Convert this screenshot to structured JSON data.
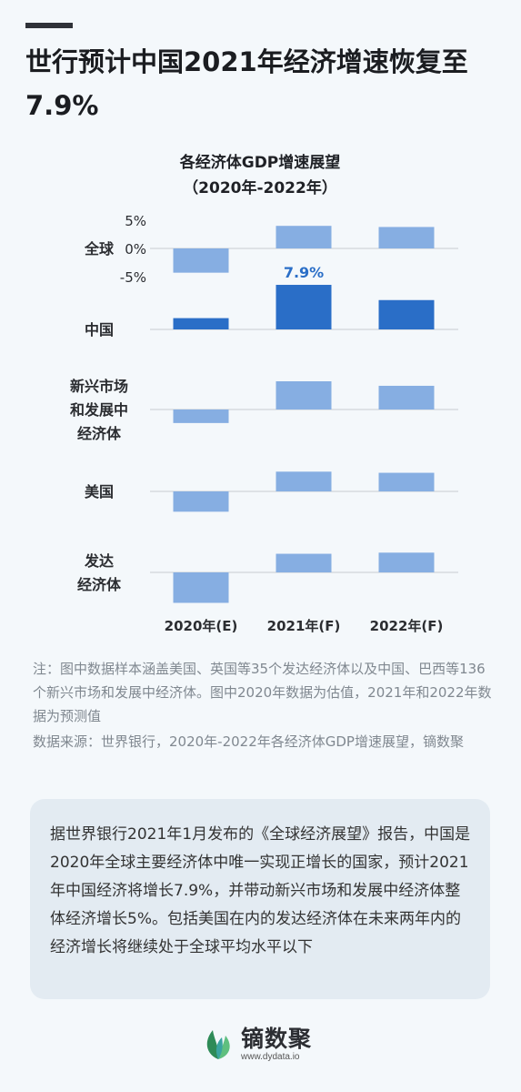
{
  "header": {
    "title": "世行预计中国2021年经济增速恢复至7.9%"
  },
  "chart_data": {
    "type": "bar",
    "title": "各经济体GDP增速展望",
    "subtitle": "（2020年-2022年）",
    "categories": [
      "2020年(E)",
      "2021年(F)",
      "2022年(F)"
    ],
    "axis_ticks": [
      "5%",
      "0%",
      "-5%"
    ],
    "panel_ylim": [
      -5.5,
      5.5
    ],
    "series": [
      {
        "name": "全球",
        "values": [
          -4.3,
          4.0,
          3.8
        ]
      },
      {
        "name": "中国",
        "values": [
          2.0,
          7.9,
          5.2
        ]
      },
      {
        "name": "新兴市场和发展中经济体",
        "values": [
          -2.4,
          5.0,
          4.2
        ]
      },
      {
        "name": "美国",
        "values": [
          -3.6,
          3.5,
          3.3
        ]
      },
      {
        "name": "发达经济体",
        "values": [
          -5.4,
          3.3,
          3.5
        ]
      }
    ],
    "series_labels": [
      [
        "全球"
      ],
      [
        "中国"
      ],
      [
        "新兴市场",
        "和发展中",
        "经济体"
      ],
      [
        "美国"
      ],
      [
        "发达",
        "经济体"
      ]
    ],
    "data_labels": [
      {
        "series": 1,
        "category": 1,
        "text": "7.9%"
      }
    ],
    "colors": {
      "other": "#86aee2",
      "china": "#2a6ec7",
      "baseline": "#c8ccd2",
      "label": "#2a6ec7"
    }
  },
  "notes": {
    "note": "注：图中数据样本涵盖美国、英国等35个发达经济体以及中国、巴西等136个新兴市场和发展中经济体。图中2020年数据为估值，2021年和2022年数据为预测值",
    "source": "数据来源：世界银行，2020年-2022年各经济体GDP增速展望，镝数聚"
  },
  "summary": {
    "text": "据世界银行2021年1月发布的《全球经济展望》报告，中国是2020年全球主要经济体中唯一实现正增长的国家，预计2021年中国经济将增长7.9%，并带动新兴市场和发展中经济体整体经济增长5%。包括美国在内的发达经济体在未来两年内的经济增长将继续处于全球平均水平以下"
  },
  "brand": {
    "name": "镝数聚",
    "url": "www.dydata.io",
    "icon": "leaf-logo-icon",
    "colors": {
      "leaf_dark": "#2e8b57",
      "leaf_light": "#5fbf7f",
      "leaf_teal": "#3aa4a0"
    }
  }
}
